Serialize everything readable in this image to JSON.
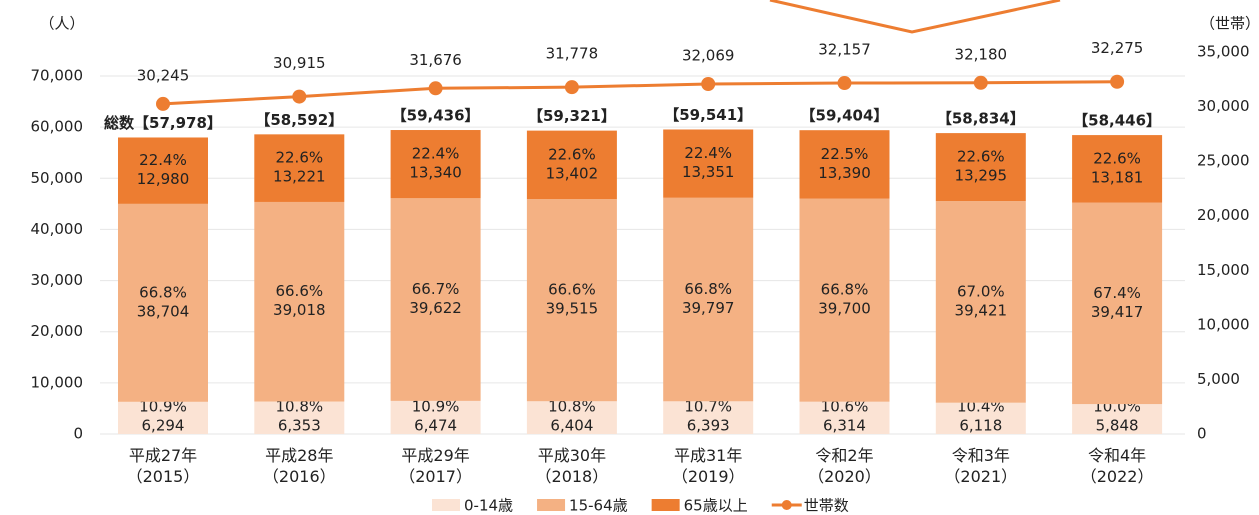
{
  "chart_data": {
    "type": "bar_line",
    "y_unit_label": "（人）",
    "y2_unit_label": "（世帯）",
    "categories": [
      "平成27年\n（2015）",
      "平成28年\n（2016）",
      "平成29年\n（2017）",
      "平成30年\n（2018）",
      "平成31年\n（2019）",
      "令和2年\n（2020）",
      "令和3年\n（2021）",
      "令和4年\n（2022）"
    ],
    "series": [
      {
        "name": "0-14歳",
        "color": "#fbe3d4",
        "values": [
          6294,
          6353,
          6474,
          6404,
          6393,
          6314,
          6118,
          5848
        ],
        "value_labels": [
          "6,294",
          "6,353",
          "6,474",
          "6,404",
          "6,393",
          "6,314",
          "6,118",
          "5,848"
        ],
        "share_labels": [
          "10.9%",
          "10.8%",
          "10.9%",
          "10.8%",
          "10.7%",
          "10.6%",
          "10.4%",
          "10.0%"
        ]
      },
      {
        "name": "15-64歳",
        "color": "#f4b183",
        "values": [
          38704,
          39018,
          39622,
          39515,
          39797,
          39700,
          39421,
          39417
        ],
        "value_labels": [
          "38,704",
          "39,018",
          "39,622",
          "39,515",
          "39,797",
          "39,700",
          "39,421",
          "39,417"
        ],
        "share_labels": [
          "66.8%",
          "66.6%",
          "66.7%",
          "66.6%",
          "66.8%",
          "66.8%",
          "67.0%",
          "67.4%"
        ]
      },
      {
        "name": "65歳以上",
        "color": "#ed7d31",
        "values": [
          12980,
          13221,
          13340,
          13402,
          13351,
          13390,
          13295,
          13181
        ],
        "value_labels": [
          "12,980",
          "13,221",
          "13,340",
          "13,402",
          "13,351",
          "13,390",
          "13,295",
          "13,181"
        ],
        "share_labels": [
          "22.4%",
          "22.6%",
          "22.4%",
          "22.6%",
          "22.4%",
          "22.5%",
          "22.6%",
          "22.6%"
        ]
      },
      {
        "name": "世帯数",
        "type": "line",
        "axis": "y2",
        "color": "#ed7d31",
        "values": [
          30245,
          30915,
          31676,
          31778,
          32069,
          32157,
          32180,
          32275
        ],
        "value_labels": [
          "30,245",
          "30,915",
          "31,676",
          "31,778",
          "32,069",
          "32,157",
          "32,180",
          "32,275"
        ]
      }
    ],
    "totals": [
      57978,
      58592,
      59436,
      59321,
      59541,
      59404,
      58834,
      58446
    ],
    "total_labels": [
      "総数【57,978】",
      "【58,592】",
      "【59,436】",
      "【59,321】",
      "【59,541】",
      "【59,404】",
      "【58,834】",
      "【58,446】"
    ],
    "ylim": [
      0,
      70000
    ],
    "yticks": [
      0,
      {
        "value": 10000,
        "label": "10,000"
      },
      {
        "value": 20000,
        "label": "20,000"
      },
      {
        "value": 30000,
        "label": "30,000"
      },
      {
        "value": 40000,
        "label": "40,000"
      },
      {
        "value": 50000,
        "label": "50,000"
      },
      {
        "value": 60000,
        "label": "60,000"
      },
      {
        "value": 70000,
        "label": "70,000"
      }
    ],
    "y2lim": [
      0,
      35000
    ],
    "y2ticks": [
      0,
      {
        "value": 5000,
        "label": "5,000"
      },
      {
        "value": 10000,
        "label": "10,000"
      },
      {
        "value": 15000,
        "label": "15,000"
      },
      {
        "value": 20000,
        "label": "20,000"
      },
      {
        "value": 25000,
        "label": "25,000"
      },
      {
        "value": 30000,
        "label": "30,000"
      },
      {
        "value": 35000,
        "label": "35,000"
      }
    ],
    "grid": true
  }
}
